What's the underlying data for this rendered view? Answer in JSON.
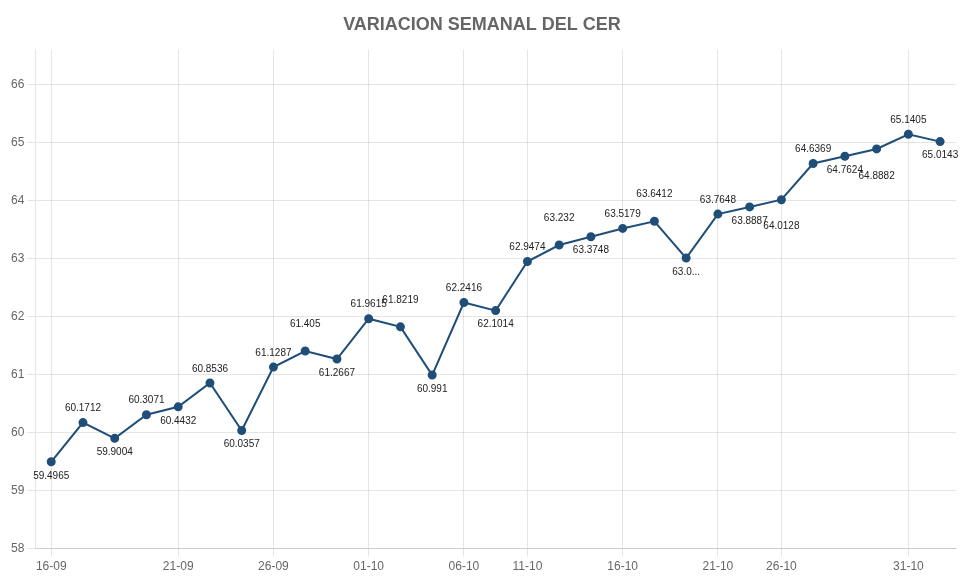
{
  "chart_data": {
    "type": "line",
    "title": "VARIACION SEMANAL DEL CER",
    "categories": [
      "16-09",
      null,
      null,
      null,
      "21-09",
      null,
      null,
      "26-09",
      null,
      null,
      "01-10",
      null,
      null,
      "06-10",
      null,
      "11-10",
      null,
      null,
      "16-10",
      null,
      null,
      "21-10",
      null,
      "26-10",
      null,
      null,
      null,
      "31-10",
      null
    ],
    "values": [
      59.4965,
      60.1712,
      59.9004,
      60.3071,
      60.4432,
      60.8536,
      60.0357,
      61.1287,
      61.405,
      61.2667,
      61.9615,
      61.8219,
      60.991,
      62.2416,
      62.1014,
      62.9474,
      63.232,
      63.3748,
      63.5179,
      63.6412,
      63.0074,
      63.7648,
      63.8887,
      64.0128,
      64.6369,
      64.7624,
      64.8882,
      65.1405,
      65.0143
    ],
    "value_labels": [
      "59.4965",
      "60.1712",
      "59.9004",
      "60.3071",
      "60.4432",
      "60.8536",
      "60.0357",
      "61.1287",
      "61.405",
      "61.2667",
      "61.9615",
      "61.8219",
      "60.991",
      "62.2416",
      "62.1014",
      "62.9474",
      "63.232",
      "63.3748",
      "63.5179",
      "63.6412",
      "63.0...",
      "63.7648",
      "63.8887",
      "64.0128",
      "64.6369",
      "64.7624",
      "64.8882",
      "65.1405",
      "65.0143"
    ],
    "data_labels": true,
    "color": "#1F4E79",
    "marker": "circle",
    "ylim": [
      58.0,
      66.6
    ],
    "yticks": [
      58,
      59,
      60,
      61,
      62,
      63,
      64,
      65,
      66
    ],
    "grid": true
  }
}
